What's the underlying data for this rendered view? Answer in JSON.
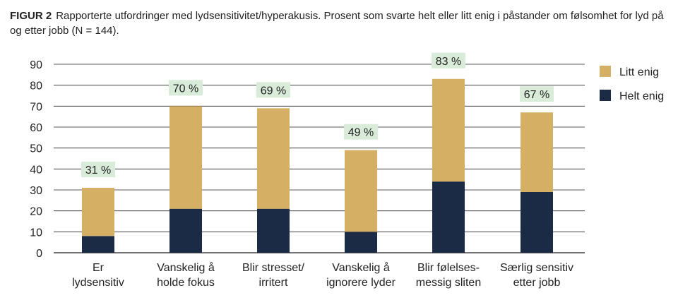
{
  "caption": {
    "figure_label": "FIGUR 2",
    "text": "Rapporterte utfordringer med lydsensitivitet/hyperakusis. Prosent som svarte helt eller litt enig i påstander om følsomhet for lyd på og etter jobb (N = 144)."
  },
  "colors": {
    "helt_enig": "#1c2b45",
    "litt_enig": "#d5b064",
    "label_bg": "#d9ecd9",
    "grid": "#222222"
  },
  "chart_data": {
    "type": "bar",
    "stacked": true,
    "categories": [
      [
        "Er",
        "lydsensitiv"
      ],
      [
        "Vanskelig å",
        "holde fokus"
      ],
      [
        "Blir stresset/",
        "irritert"
      ],
      [
        "Vanskelig å",
        "ignorere lyder"
      ],
      [
        "Blir følelses-",
        "messig sliten"
      ],
      [
        "Særlig sensitiv",
        "etter jobb"
      ]
    ],
    "series": [
      {
        "name": "Helt enig",
        "values": [
          8,
          21,
          21,
          10,
          34,
          29
        ]
      },
      {
        "name": "Litt enig",
        "values": [
          23,
          49,
          48,
          39,
          49,
          38
        ]
      }
    ],
    "totals": [
      "31 %",
      "70 %",
      "69 %",
      "49 %",
      "83 %",
      "67 %"
    ],
    "yticks": [
      0,
      10,
      20,
      30,
      40,
      50,
      60,
      70,
      80,
      90
    ],
    "ylim": [
      0,
      90
    ],
    "grid": true,
    "legend": [
      "Litt enig",
      "Helt enig"
    ],
    "legend_position": "right"
  }
}
